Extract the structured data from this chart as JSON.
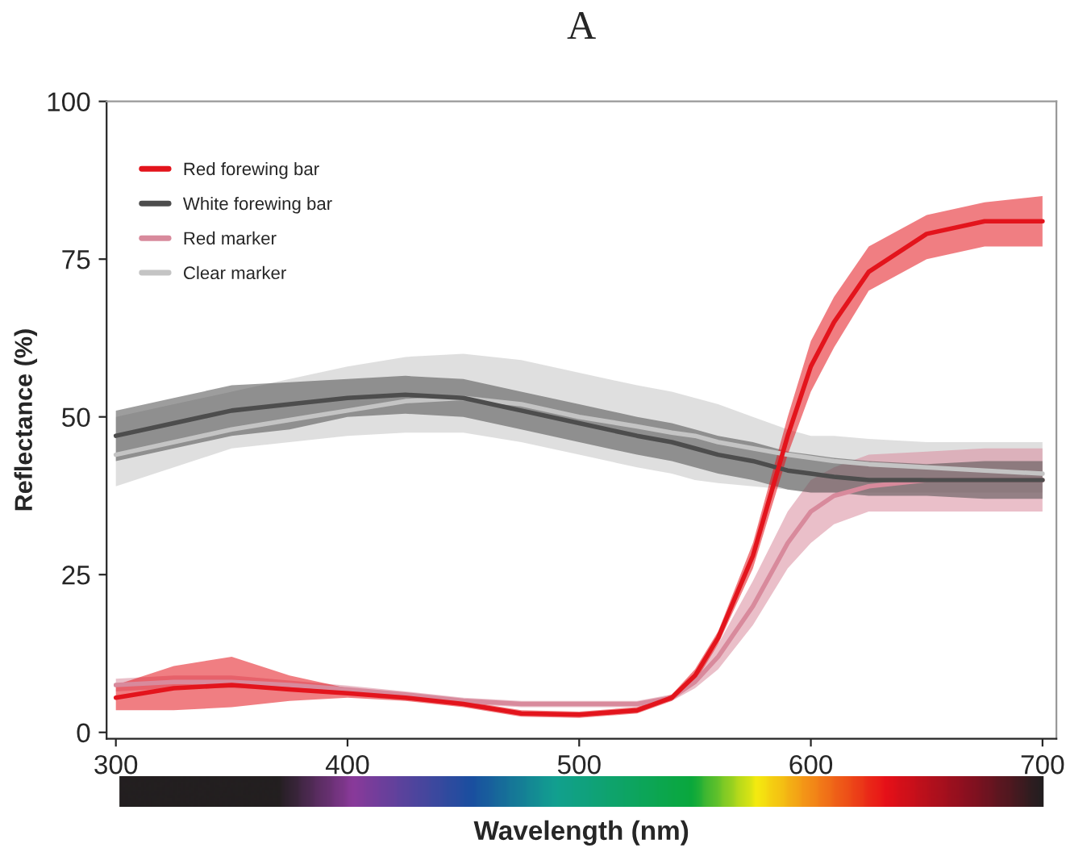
{
  "chart_data": {
    "type": "line",
    "title": "A",
    "xlabel": "Wavelength (nm)",
    "ylabel": "Reflectance (%)",
    "x": [
      300,
      325,
      350,
      375,
      400,
      425,
      450,
      475,
      500,
      525,
      540,
      550,
      560,
      575,
      590,
      600,
      610,
      625,
      650,
      675,
      700
    ],
    "xlim": [
      296,
      706
    ],
    "ylim": [
      -1,
      100
    ],
    "xticks": [
      300,
      400,
      500,
      600,
      700
    ],
    "yticks": [
      0,
      25,
      50,
      75,
      100
    ],
    "grid": false,
    "legend": "top left",
    "marker": "none",
    "line_style": "solid",
    "series": [
      {
        "name": "Red forewing bar",
        "color": "#e3141c",
        "values": [
          5.5,
          7,
          7.5,
          6.8,
          6.2,
          5.5,
          4.5,
          3,
          2.8,
          3.5,
          5.5,
          9,
          15,
          28,
          47,
          58,
          65,
          73,
          79,
          81,
          81
        ],
        "lower": [
          3.5,
          3.5,
          4,
          5,
          5.5,
          5,
          4,
          2.5,
          2.3,
          3,
          5,
          8,
          14,
          26,
          44,
          54,
          61,
          70,
          75,
          77,
          77
        ],
        "upper": [
          7.5,
          10.5,
          12,
          9,
          7,
          6,
          5,
          3.5,
          3.3,
          4,
          6,
          10,
          16,
          30,
          50,
          62,
          69,
          77,
          82,
          84,
          85
        ]
      },
      {
        "name": "White forewing bar",
        "color": "#4d4d4d",
        "values": [
          47,
          49,
          51,
          52,
          53,
          53.5,
          53,
          51,
          49,
          47,
          46,
          45,
          44,
          43,
          41.5,
          41,
          40.5,
          40,
          40,
          40,
          40
        ],
        "lower": [
          43,
          45,
          47,
          48,
          50,
          50.5,
          50,
          48,
          46,
          44,
          43,
          42,
          41,
          40,
          38.5,
          38,
          38,
          37.5,
          37.5,
          37,
          37
        ],
        "upper": [
          51,
          53,
          55,
          55.5,
          56,
          56.5,
          56,
          54,
          52,
          50,
          49,
          48,
          47,
          46,
          44.5,
          44,
          43.5,
          43,
          42.5,
          43,
          43
        ]
      },
      {
        "name": "Red marker",
        "color": "#d88a9c",
        "values": [
          7.5,
          8,
          8,
          7.5,
          6.8,
          6,
          5,
          4.5,
          4.5,
          4.5,
          5.5,
          8,
          12,
          20,
          30,
          35,
          37.5,
          39,
          40,
          40,
          40
        ],
        "lower": [
          6.5,
          7,
          7,
          6.8,
          6.2,
          5.5,
          4.5,
          4,
          4,
          4,
          5,
          7,
          10,
          17,
          26,
          30,
          33,
          35,
          35,
          35,
          35
        ],
        "upper": [
          8.5,
          9,
          9,
          8.2,
          7.4,
          6.5,
          5.5,
          5,
          5,
          5,
          6,
          9,
          14,
          24,
          35,
          40,
          42,
          44,
          44.5,
          45,
          45
        ]
      },
      {
        "name": "Clear marker",
        "color": "#c4c4c4",
        "values": [
          44,
          46,
          48,
          49.5,
          51,
          52.5,
          53,
          52,
          50,
          48.5,
          47.5,
          47,
          46,
          45,
          44,
          43.5,
          43,
          42.5,
          42,
          41.5,
          41
        ],
        "lower": [
          39,
          42,
          45,
          46,
          47,
          47.5,
          47.5,
          46,
          44,
          42,
          41,
          40,
          39.5,
          39,
          38.5,
          38,
          38,
          38,
          38,
          38,
          38
        ],
        "upper": [
          50,
          52,
          54,
          56,
          58,
          59.5,
          60,
          59,
          57,
          55,
          54,
          53,
          52,
          50,
          48,
          47,
          47,
          46.5,
          46,
          46,
          46
        ]
      }
    ]
  }
}
